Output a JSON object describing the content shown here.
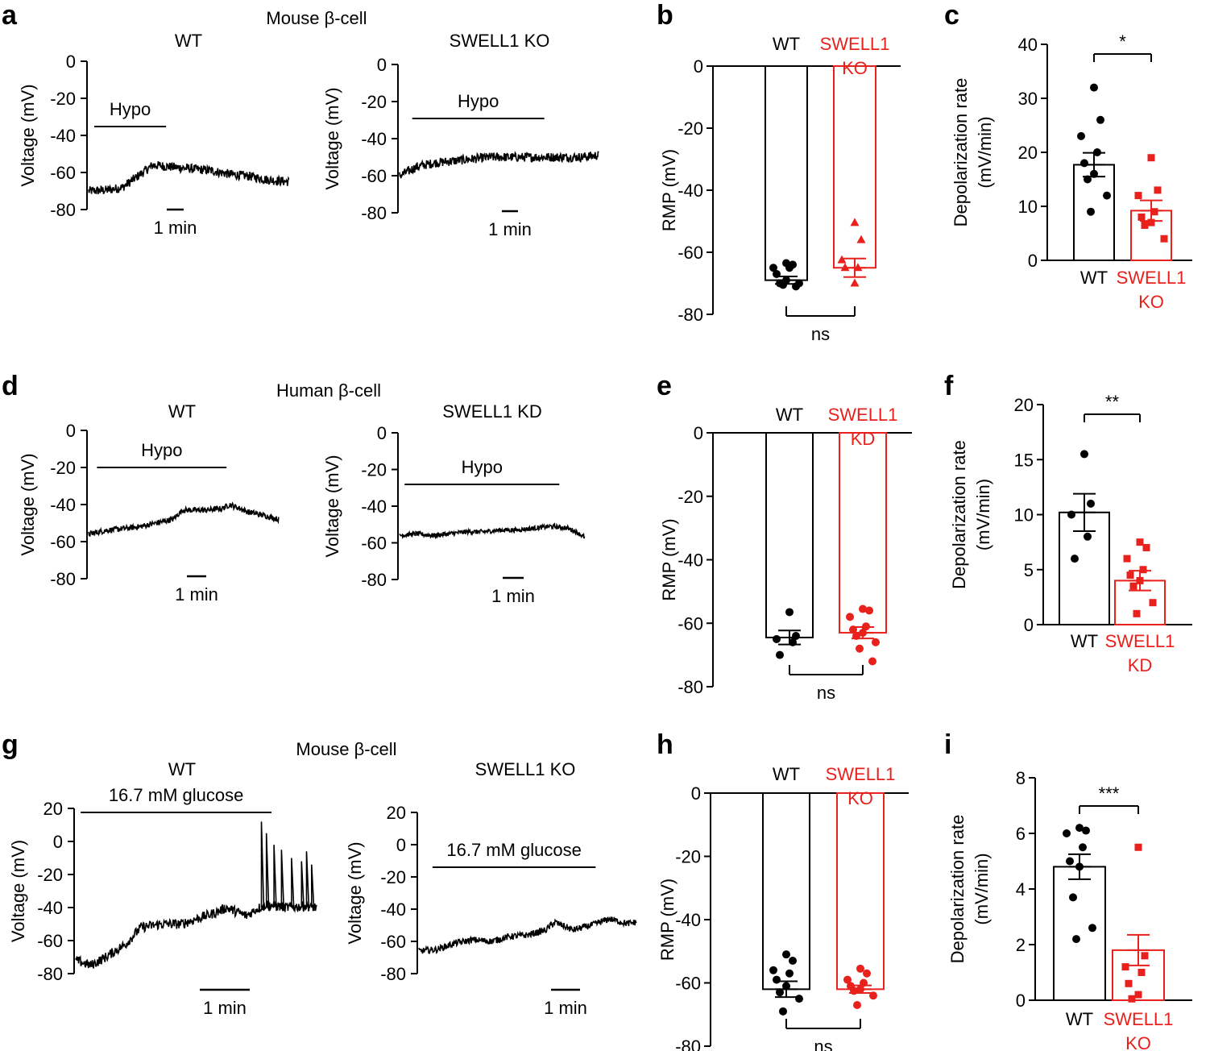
{
  "colors": {
    "wt": "#000000",
    "ko": "#e8211d"
  },
  "scale_bar_label": "1 min",
  "ns_label": "ns",
  "chart_data": [
    {
      "type": "line",
      "panel": "a",
      "group": "Mouse β-cell",
      "title": "WT",
      "ylabel": "Voltage (mV)",
      "ylim": [
        -80,
        0
      ],
      "yticks": [
        0,
        -20,
        -40,
        -60,
        -80
      ],
      "stim_label": "Hypo",
      "duration_min": 11,
      "trace_points": [
        [
          0,
          -70
        ],
        [
          1,
          -69.5
        ],
        [
          1.8,
          -68
        ],
        [
          2.6,
          -62
        ],
        [
          3.4,
          -56
        ],
        [
          4.4,
          -57
        ],
        [
          5.5,
          -58
        ],
        [
          6.5,
          -59
        ],
        [
          7.5,
          -61
        ],
        [
          8.5,
          -62
        ],
        [
          9.5,
          -64
        ],
        [
          10.6,
          -65
        ]
      ],
      "stim_start_min": 0.3,
      "stim_end_min": 4.1
    },
    {
      "type": "line",
      "panel": "a",
      "group": "Mouse β-cell",
      "title": "SWELL1 KO",
      "ylabel": "Voltage (mV)",
      "ylim": [
        -80,
        0
      ],
      "yticks": [
        0,
        -20,
        -40,
        -60,
        -80
      ],
      "stim_label": "Hypo",
      "duration_min": 11,
      "trace_points": [
        [
          0,
          -60
        ],
        [
          1,
          -55
        ],
        [
          2,
          -53
        ],
        [
          3,
          -52
        ],
        [
          4,
          -51
        ],
        [
          5,
          -50
        ],
        [
          6,
          -50
        ],
        [
          7,
          -50
        ],
        [
          8,
          -50
        ],
        [
          9,
          -50
        ],
        [
          10,
          -50
        ],
        [
          11,
          -49
        ]
      ],
      "stim_start_min": 0.7,
      "stim_end_min": 8.0
    },
    {
      "type": "bar",
      "panel": "b",
      "ylabel": "RMP (mV)",
      "ylim": [
        -80,
        0
      ],
      "yticks": [
        0,
        -20,
        -40,
        -60,
        -80
      ],
      "categories": [
        "WT",
        "SWELL1 KO"
      ],
      "values": [
        -69,
        -65
      ],
      "sem": [
        1.2,
        3.0
      ],
      "points": [
        [
          -63.5,
          -64,
          -65,
          -65,
          -67,
          -69,
          -70,
          -70,
          -70.5,
          -71
        ],
        [
          -50.5,
          -56,
          -62.5,
          -65,
          -65,
          -70
        ]
      ],
      "significance": "ns"
    },
    {
      "type": "bar",
      "panel": "c",
      "ylabel": "Depolarization rate (mV/min)",
      "ylim": [
        0,
        40
      ],
      "yticks": [
        0,
        10,
        20,
        30,
        40
      ],
      "categories": [
        "WT",
        "SWELL1 KO"
      ],
      "values": [
        17.7,
        9.2
      ],
      "sem": [
        2.2,
        1.9
      ],
      "points": [
        [
          32,
          26,
          23,
          20,
          18,
          16,
          15,
          12,
          9
        ],
        [
          19,
          13,
          12,
          9,
          8,
          7,
          6.5,
          4
        ]
      ],
      "significance": "*"
    },
    {
      "type": "line",
      "panel": "d",
      "group": "Human β-cell",
      "title": "WT",
      "ylabel": "Voltage (mV)",
      "ylim": [
        -80,
        0
      ],
      "yticks": [
        0,
        -20,
        -40,
        -60,
        -80
      ],
      "stim_label": "Hypo",
      "duration_min": 11.5,
      "trace_points": [
        [
          0,
          -56
        ],
        [
          1,
          -54
        ],
        [
          2,
          -53
        ],
        [
          3,
          -52
        ],
        [
          4,
          -50
        ],
        [
          5,
          -48
        ],
        [
          5.6,
          -43
        ],
        [
          7,
          -43
        ],
        [
          8,
          -42
        ],
        [
          8.4,
          -40
        ],
        [
          9.5,
          -44
        ],
        [
          10.5,
          -46
        ],
        [
          11.3,
          -48
        ]
      ],
      "stim_start_min": 0.5,
      "stim_end_min": 8.2
    },
    {
      "type": "line",
      "panel": "d",
      "group": "Human β-cell",
      "title": "SWELL1 KD",
      "ylabel": "Voltage (mV)",
      "ylim": [
        -80,
        0
      ],
      "yticks": [
        0,
        -20,
        -40,
        -60,
        -80
      ],
      "stim_label": "Hypo",
      "duration_min": 11.5,
      "trace_points": [
        [
          0,
          -56
        ],
        [
          1,
          -55
        ],
        [
          2,
          -56
        ],
        [
          3,
          -55
        ],
        [
          4,
          -54
        ],
        [
          5,
          -54
        ],
        [
          6,
          -53
        ],
        [
          7,
          -53
        ],
        [
          8,
          -52
        ],
        [
          9,
          -51
        ],
        [
          10,
          -52
        ],
        [
          10.5,
          -54
        ],
        [
          11,
          -57
        ]
      ],
      "stim_start_min": 0.3,
      "stim_end_min": 9.5
    },
    {
      "type": "bar",
      "panel": "e",
      "ylabel": "RMP (mV)",
      "ylim": [
        -80,
        0
      ],
      "yticks": [
        0,
        -20,
        -40,
        -60,
        -80
      ],
      "categories": [
        "WT",
        "SWELL1 KD"
      ],
      "values": [
        -64.5,
        -63
      ],
      "sem": [
        2.2,
        1.8
      ],
      "points": [
        [
          -56.5,
          -64,
          -65,
          -66,
          -70
        ],
        [
          -55.5,
          -56,
          -58,
          -61,
          -62,
          -63,
          -64,
          -66,
          -68,
          -72
        ]
      ],
      "significance": "ns"
    },
    {
      "type": "bar",
      "panel": "f",
      "ylabel": "Depolarization rate (mV/min)",
      "ylim": [
        0,
        20
      ],
      "yticks": [
        0,
        5,
        10,
        15,
        20
      ],
      "categories": [
        "WT",
        "SWELL1 KD"
      ],
      "values": [
        10.2,
        4.0
      ],
      "sem": [
        1.7,
        0.9
      ],
      "points": [
        [
          15.5,
          11,
          10,
          8,
          6
        ],
        [
          7.5,
          7,
          6,
          5,
          4.5,
          4,
          3.5,
          2,
          1
        ]
      ],
      "significance": "**"
    },
    {
      "type": "line",
      "panel": "g",
      "group": "Mouse β-cell",
      "title": "WT",
      "ylabel": "Voltage (mV)",
      "ylim": [
        -80,
        20
      ],
      "yticks": [
        20,
        0,
        -20,
        -40,
        -60,
        -80
      ],
      "stim_label": "16.7 mM glucose",
      "duration_min": 4.8,
      "trace_points": [
        [
          0,
          -72
        ],
        [
          0.3,
          -75
        ],
        [
          0.6,
          -70
        ],
        [
          1.0,
          -62
        ],
        [
          1.3,
          -52
        ],
        [
          1.7,
          -50
        ],
        [
          2.1,
          -50
        ],
        [
          2.4,
          -47
        ],
        [
          2.8,
          -43
        ],
        [
          3.0,
          -40
        ],
        [
          3.4,
          -45
        ],
        [
          3.6,
          -41
        ],
        [
          3.8,
          -38
        ],
        [
          4.2,
          -40
        ],
        [
          4.6,
          -39
        ],
        [
          4.8,
          -40
        ]
      ],
      "spikes": [
        [
          3.7,
          12
        ],
        [
          3.8,
          5
        ],
        [
          3.95,
          -2
        ],
        [
          4.1,
          -5
        ],
        [
          4.3,
          -10
        ],
        [
          4.5,
          -12
        ],
        [
          4.6,
          -6
        ],
        [
          4.7,
          -14
        ]
      ],
      "stim_start_min": 0.1,
      "stim_end_min": 3.9
    },
    {
      "type": "line",
      "panel": "g",
      "group": "Mouse β-cell",
      "title": "SWELL1 KO",
      "ylabel": "Voltage (mV)",
      "ylim": [
        -80,
        20
      ],
      "yticks": [
        20,
        0,
        -20,
        -40,
        -60,
        -80
      ],
      "stim_label": "16.7 mM glucose",
      "duration_min": 4.8,
      "trace_points": [
        [
          0,
          -66
        ],
        [
          0.4,
          -65
        ],
        [
          0.8,
          -61
        ],
        [
          1.2,
          -59
        ],
        [
          1.6,
          -60
        ],
        [
          2.0,
          -57
        ],
        [
          2.4,
          -56
        ],
        [
          2.8,
          -53
        ],
        [
          3.0,
          -48
        ],
        [
          3.4,
          -53
        ],
        [
          3.8,
          -50
        ],
        [
          4.2,
          -46
        ],
        [
          4.6,
          -49
        ],
        [
          4.8,
          -48
        ]
      ],
      "stim_start_min": 0.3,
      "stim_end_min": 3.9
    },
    {
      "type": "bar",
      "panel": "h",
      "ylabel": "RMP (mV)",
      "ylim": [
        -80,
        0
      ],
      "yticks": [
        0,
        -20,
        -40,
        -60,
        -80
      ],
      "categories": [
        "WT",
        "SWELL1 KO"
      ],
      "values": [
        -62,
        -62
      ],
      "sem": [
        2.5,
        1.2
      ],
      "points": [
        [
          -51,
          -53,
          -56,
          -57,
          -59,
          -61,
          -63,
          -65,
          -69
        ],
        [
          -55.5,
          -57,
          -59,
          -60,
          -61,
          -62,
          -62.5,
          -64,
          -67
        ]
      ],
      "significance": "ns"
    },
    {
      "type": "bar",
      "panel": "i",
      "ylabel": "Depolarization rate (mV/min)",
      "ylim": [
        0,
        8
      ],
      "yticks": [
        0,
        2,
        4,
        6,
        8
      ],
      "categories": [
        "WT",
        "SWELL1 KO"
      ],
      "values": [
        4.8,
        1.8
      ],
      "sem": [
        0.45,
        0.55
      ],
      "points": [
        [
          6.2,
          6.1,
          6.0,
          5.5,
          5.0,
          4.8,
          3.7,
          2.6,
          2.2
        ],
        [
          5.5,
          1.6,
          1.2,
          1.0,
          0.6,
          0.2,
          0.05
        ]
      ],
      "significance": "***"
    }
  ]
}
